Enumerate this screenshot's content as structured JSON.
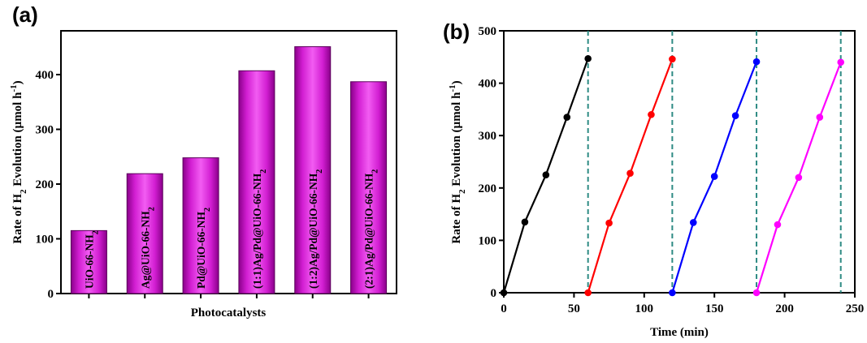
{
  "chart_data": [
    {
      "panel": "(a)",
      "type": "bar",
      "categories": [
        {
          "base": "UiO-66-NH",
          "sub": "2"
        },
        {
          "base": "Ag@UiO-66-NH",
          "sub": "2"
        },
        {
          "base": "Pd@UiO-66-NH",
          "sub": "2"
        },
        {
          "base": "(1:1)Ag/Pd@UiO-66-NH",
          "sub": "2"
        },
        {
          "base": "(1:2)Ag/Pd@UiO-66-NH",
          "sub": "2"
        },
        {
          "base": "(2:1)Ag/Pd@UiO-66-NH",
          "sub": "2"
        }
      ],
      "values": [
        115,
        219,
        248,
        407,
        451,
        387
      ],
      "xlabel": "Photocatalysts",
      "ylabel": {
        "p1": "Rate of H",
        "sub": "2",
        "p2": " Evolution (µmol h",
        "sup": "-1",
        "p3": ")"
      },
      "ylim": [
        0,
        480
      ],
      "yticks": [
        0,
        100,
        200,
        300,
        400
      ],
      "bar_color": "#c400c4"
    },
    {
      "panel": "(b)",
      "type": "line",
      "xlabel": "Time (min)",
      "ylabel": {
        "p1": "Rate of H",
        "sub": "2",
        "p2": " Evolution (µmol h",
        "sup": "-1",
        "p3": ")"
      },
      "xlim": [
        0,
        250
      ],
      "ylim": [
        0,
        500
      ],
      "xticks": [
        0,
        50,
        100,
        150,
        200,
        250
      ],
      "yticks": [
        0,
        100,
        200,
        300,
        400,
        500
      ],
      "cycle_lines": [
        60,
        120,
        180,
        240
      ],
      "cycle_line_color": "#2e8b84",
      "series": [
        {
          "color": "#000000",
          "x": [
            0,
            15,
            30,
            45,
            60
          ],
          "y": [
            0,
            135,
            225,
            335,
            447
          ]
        },
        {
          "color": "#ff0000",
          "x": [
            60,
            75,
            90,
            105,
            120
          ],
          "y": [
            0,
            133,
            228,
            340,
            446
          ]
        },
        {
          "color": "#0000ff",
          "x": [
            120,
            135,
            150,
            165,
            180
          ],
          "y": [
            0,
            134,
            222,
            338,
            441
          ]
        },
        {
          "color": "#ff00ff",
          "x": [
            180,
            195,
            210,
            225,
            240
          ],
          "y": [
            0,
            130,
            220,
            335,
            440
          ]
        }
      ]
    }
  ]
}
